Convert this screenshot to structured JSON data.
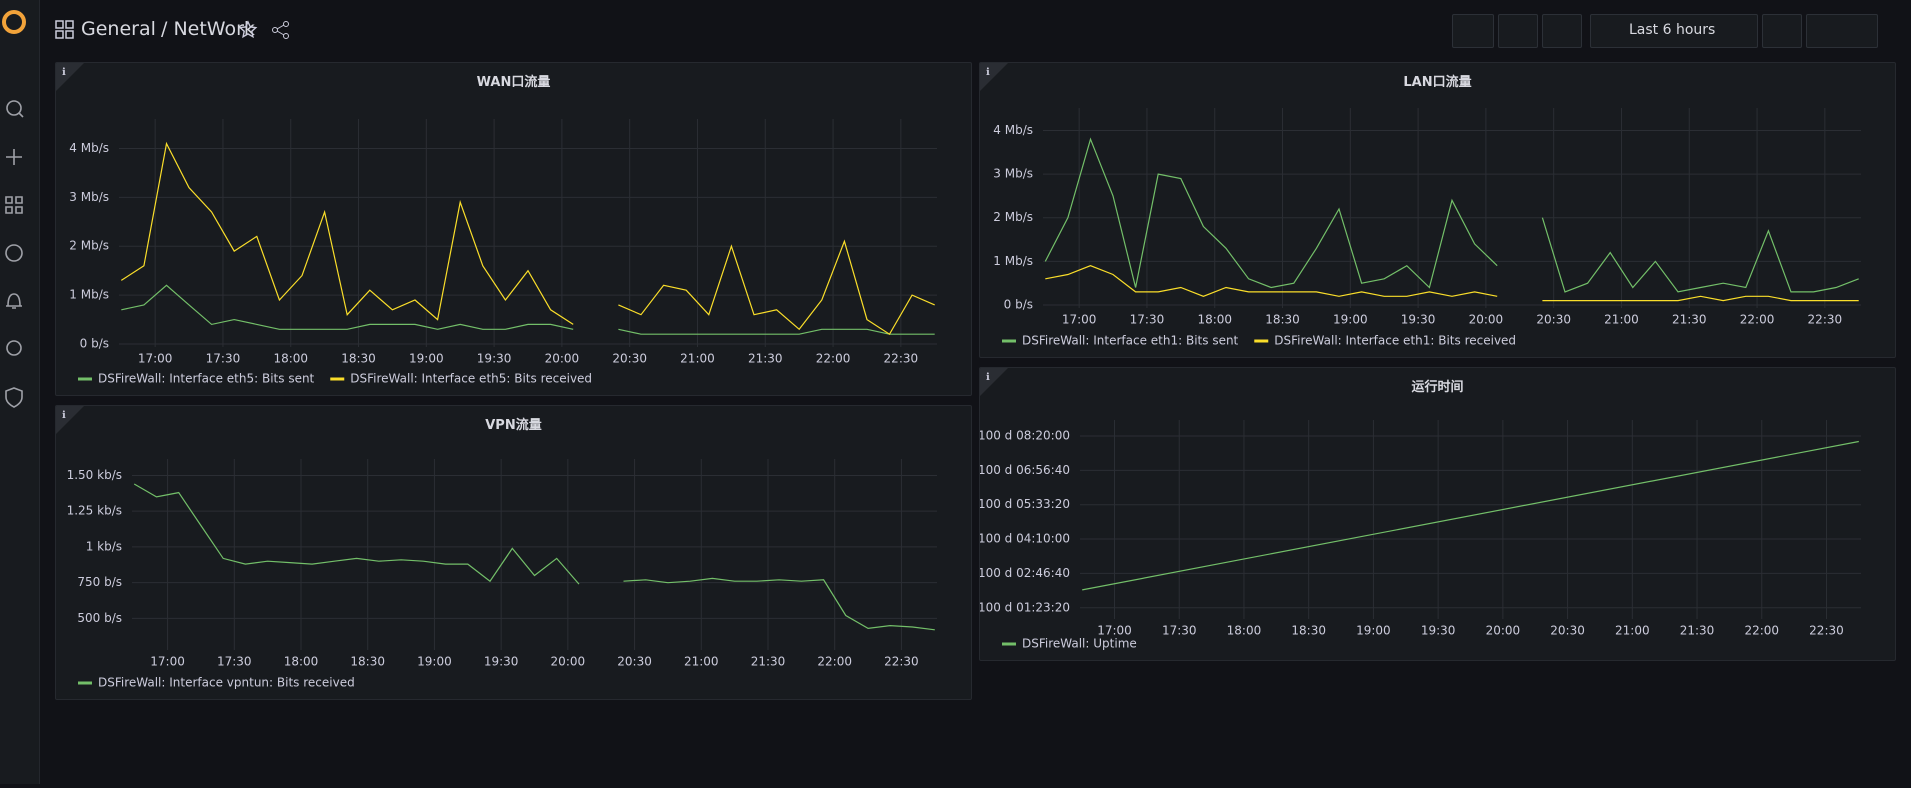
{
  "header": {
    "folder": "General",
    "dashboard": "/ NetWork",
    "time_range": "Last 6 hours"
  },
  "chart_data": [
    {
      "type": "line",
      "title": "WAN口流量",
      "x": [
        "16:45",
        "16:55",
        "17:05",
        "17:15",
        "17:25",
        "17:35",
        "17:45",
        "17:55",
        "18:05",
        "18:15",
        "18:25",
        "18:35",
        "18:45",
        "18:55",
        "19:05",
        "19:15",
        "19:25",
        "19:35",
        "19:45",
        "19:55",
        "20:05",
        "20:15",
        "20:25",
        "20:35",
        "20:45",
        "20:55",
        "21:05",
        "21:15",
        "21:25",
        "21:35",
        "21:45",
        "21:55",
        "22:05",
        "22:15",
        "22:25",
        "22:35",
        "22:45"
      ],
      "series": [
        {
          "name": "DSFireWall: Interface eth5: Bits sent",
          "color": "#73bf69",
          "values": [
            0.7,
            0.8,
            1.2,
            0.8,
            0.4,
            0.5,
            0.4,
            0.3,
            0.3,
            0.3,
            0.3,
            0.4,
            0.4,
            0.4,
            0.3,
            0.4,
            0.3,
            0.3,
            0.4,
            0.4,
            0.3,
            null,
            0.3,
            0.2,
            0.2,
            0.2,
            0.2,
            0.2,
            0.2,
            0.2,
            0.2,
            0.3,
            0.3,
            0.3,
            0.2,
            0.2,
            0.2
          ]
        },
        {
          "name": "DSFireWall: Interface eth5: Bits received",
          "color": "#fade2a",
          "values": [
            1.3,
            1.6,
            4.1,
            3.2,
            2.7,
            1.9,
            2.2,
            0.9,
            1.4,
            2.7,
            0.6,
            1.1,
            0.7,
            0.9,
            0.5,
            2.9,
            1.6,
            0.9,
            1.5,
            0.7,
            0.4,
            null,
            0.8,
            0.6,
            1.2,
            1.1,
            0.6,
            2.0,
            0.6,
            0.7,
            0.3,
            0.9,
            2.1,
            0.5,
            0.2,
            1.0,
            0.8
          ]
        }
      ],
      "xlim": [
        "16:44",
        "22:46"
      ],
      "xticks": [
        "17:00",
        "17:30",
        "18:00",
        "18:30",
        "19:00",
        "19:30",
        "20:00",
        "20:30",
        "21:00",
        "21:30",
        "22:00",
        "22:30"
      ],
      "ylim": [
        0,
        4.5
      ],
      "yticks": [
        {
          "value": 0,
          "label": "0 b/s"
        },
        {
          "value": 1,
          "label": "1 Mb/s"
        },
        {
          "value": 2,
          "label": "2 Mb/s"
        },
        {
          "value": 3,
          "label": "3 Mb/s"
        },
        {
          "value": 4,
          "label": "4 Mb/s"
        }
      ],
      "grid": true,
      "legend": "bottom"
    },
    {
      "type": "line",
      "title": "LAN口流量",
      "x": [
        "16:45",
        "16:55",
        "17:05",
        "17:15",
        "17:25",
        "17:35",
        "17:45",
        "17:55",
        "18:05",
        "18:15",
        "18:25",
        "18:35",
        "18:45",
        "18:55",
        "19:05",
        "19:15",
        "19:25",
        "19:35",
        "19:45",
        "19:55",
        "20:05",
        "20:15",
        "20:25",
        "20:35",
        "20:45",
        "20:55",
        "21:05",
        "21:15",
        "21:25",
        "21:35",
        "21:45",
        "21:55",
        "22:05",
        "22:15",
        "22:25",
        "22:35",
        "22:45"
      ],
      "series": [
        {
          "name": "DSFireWall: Interface eth1: Bits sent",
          "color": "#73bf69",
          "values": [
            1.0,
            2.0,
            3.8,
            2.5,
            0.4,
            3.0,
            2.9,
            1.8,
            1.3,
            0.6,
            0.4,
            0.5,
            1.3,
            2.2,
            0.5,
            0.6,
            0.9,
            0.4,
            2.4,
            1.4,
            0.9,
            null,
            2.0,
            0.3,
            0.5,
            1.2,
            0.4,
            1.0,
            0.3,
            0.4,
            0.5,
            0.4,
            1.7,
            0.3,
            0.3,
            0.4,
            0.6
          ]
        },
        {
          "name": "DSFireWall: Interface eth1: Bits received",
          "color": "#fade2a",
          "values": [
            0.6,
            0.7,
            0.9,
            0.7,
            0.3,
            0.3,
            0.4,
            0.2,
            0.4,
            0.3,
            0.3,
            0.3,
            0.3,
            0.2,
            0.3,
            0.2,
            0.2,
            0.3,
            0.2,
            0.3,
            0.2,
            null,
            0.1,
            0.1,
            0.1,
            0.1,
            0.1,
            0.1,
            0.1,
            0.2,
            0.1,
            0.2,
            0.2,
            0.1,
            0.1,
            0.1,
            0.1
          ]
        }
      ],
      "xlim": [
        "16:44",
        "22:46"
      ],
      "xticks": [
        "17:00",
        "17:30",
        "18:00",
        "18:30",
        "19:00",
        "19:30",
        "20:00",
        "20:30",
        "21:00",
        "21:30",
        "22:00",
        "22:30"
      ],
      "ylim": [
        0,
        4.4
      ],
      "yticks": [
        {
          "value": 0,
          "label": "0 b/s"
        },
        {
          "value": 1,
          "label": "1 Mb/s"
        },
        {
          "value": 2,
          "label": "2 Mb/s"
        },
        {
          "value": 3,
          "label": "3 Mb/s"
        },
        {
          "value": 4,
          "label": "4 Mb/s"
        }
      ],
      "grid": true,
      "legend": "bottom"
    },
    {
      "type": "line",
      "title": "VPN流量",
      "x": [
        "16:45",
        "16:55",
        "17:05",
        "17:15",
        "17:25",
        "17:35",
        "17:45",
        "17:55",
        "18:05",
        "18:15",
        "18:25",
        "18:35",
        "18:45",
        "18:55",
        "19:05",
        "19:15",
        "19:25",
        "19:35",
        "19:45",
        "19:55",
        "20:05",
        "20:15",
        "20:25",
        "20:35",
        "20:45",
        "20:55",
        "21:05",
        "21:15",
        "21:25",
        "21:35",
        "21:45",
        "21:55",
        "22:05",
        "22:15",
        "22:25",
        "22:35",
        "22:45"
      ],
      "series": [
        {
          "name": "DSFireWall: Interface vpntun: Bits received",
          "color": "#73bf69",
          "values": [
            1440,
            1350,
            1380,
            1150,
            920,
            880,
            900,
            890,
            880,
            900,
            920,
            900,
            910,
            900,
            880,
            880,
            760,
            990,
            800,
            920,
            740,
            null,
            760,
            770,
            750,
            760,
            780,
            760,
            760,
            770,
            760,
            770,
            520,
            430,
            450,
            440,
            420
          ]
        }
      ],
      "xlim": [
        "16:44",
        "22:46"
      ],
      "xticks": [
        "17:00",
        "17:30",
        "18:00",
        "18:30",
        "19:00",
        "19:30",
        "20:00",
        "20:30",
        "21:00",
        "21:30",
        "22:00",
        "22:30"
      ],
      "ylim": [
        300,
        1580
      ],
      "yticks": [
        {
          "value": 500,
          "label": "500 b/s"
        },
        {
          "value": 750,
          "label": "750 b/s"
        },
        {
          "value": 1000,
          "label": "1 kb/s"
        },
        {
          "value": 1250,
          "label": "1.25 kb/s"
        },
        {
          "value": 1500,
          "label": "1.50 kb/s"
        }
      ],
      "grid": true,
      "legend": "bottom"
    },
    {
      "type": "line",
      "title": "运行时间",
      "x": [
        "16:45",
        "22:45"
      ],
      "series": [
        {
          "name": "DSFireWall: Uptime",
          "color": "#73bf69",
          "values": [
            8647600,
            8669200
          ]
        }
      ],
      "xlim": [
        "16:44",
        "22:46"
      ],
      "xticks": [
        "17:00",
        "17:30",
        "18:00",
        "18:30",
        "19:00",
        "19:30",
        "20:00",
        "20:30",
        "21:00",
        "21:30",
        "22:00",
        "22:30"
      ],
      "ylim": [
        8643800,
        8671600
      ],
      "yticks": [
        {
          "value": 8645000,
          "label": "100 d 01:23:20"
        },
        {
          "value": 8650000,
          "label": "100 d 02:46:40"
        },
        {
          "value": 8655000,
          "label": "100 d 04:10:00"
        },
        {
          "value": 8660000,
          "label": "100 d 05:33:20"
        },
        {
          "value": 8665000,
          "label": "100 d 06:56:40"
        },
        {
          "value": 8670000,
          "label": "100 d 08:20:00"
        }
      ],
      "grid": true,
      "legend": "bottom"
    }
  ]
}
